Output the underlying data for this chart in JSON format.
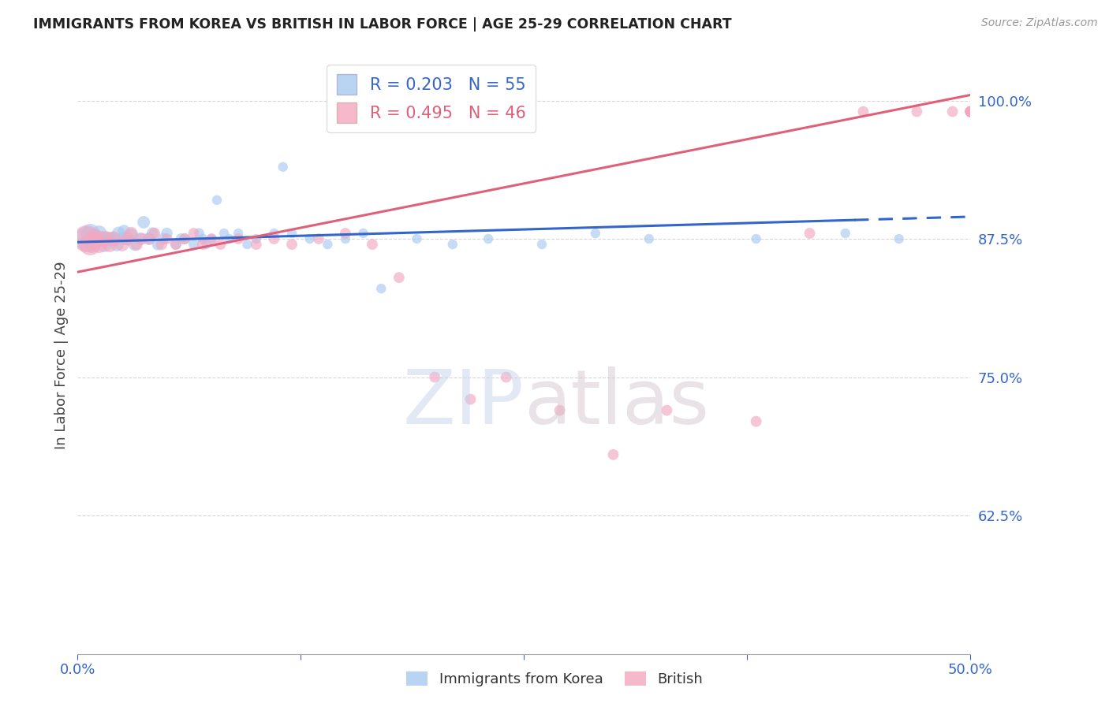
{
  "title": "IMMIGRANTS FROM KOREA VS BRITISH IN LABOR FORCE | AGE 25-29 CORRELATION CHART",
  "source": "Source: ZipAtlas.com",
  "ylabel": "In Labor Force | Age 25-29",
  "korea_R": 0.203,
  "korea_N": 55,
  "british_R": 0.495,
  "british_N": 46,
  "korea_color": "#A8C8F0",
  "british_color": "#F4A8C0",
  "korea_line_color": "#3366CC",
  "british_line_color": "#E0607A",
  "title_color": "#222222",
  "tick_color": "#3366CC",
  "grid_color": "#CCCCCC",
  "background_color": "#FFFFFF",
  "xlim": [
    0.0,
    0.5
  ],
  "ylim": [
    0.5,
    1.04
  ],
  "yticks": [
    0.625,
    0.75,
    0.875,
    1.0
  ],
  "ytick_labels": [
    "62.5%",
    "75.0%",
    "87.5%",
    "100.0%"
  ],
  "xticks": [
    0.0,
    0.125,
    0.25,
    0.375,
    0.5
  ],
  "xtick_labels": [
    "0.0%",
    "",
    "",
    "",
    "50.0%"
  ],
  "korea_x": [
    0.005,
    0.007,
    0.008,
    0.01,
    0.012,
    0.013,
    0.015,
    0.016,
    0.018,
    0.02,
    0.022,
    0.023,
    0.025,
    0.026,
    0.028,
    0.03,
    0.032,
    0.035,
    0.037,
    0.04,
    0.042,
    0.045,
    0.048,
    0.05,
    0.055,
    0.058,
    0.06,
    0.065,
    0.068,
    0.07,
    0.072,
    0.075,
    0.078,
    0.082,
    0.085,
    0.09,
    0.095,
    0.1,
    0.11,
    0.115,
    0.12,
    0.13,
    0.14,
    0.15,
    0.16,
    0.17,
    0.19,
    0.21,
    0.23,
    0.26,
    0.29,
    0.32,
    0.38,
    0.43,
    0.46
  ],
  "korea_y": [
    0.875,
    0.88,
    0.87,
    0.875,
    0.88,
    0.875,
    0.87,
    0.875,
    0.875,
    0.875,
    0.87,
    0.88,
    0.875,
    0.882,
    0.875,
    0.878,
    0.87,
    0.875,
    0.89,
    0.875,
    0.88,
    0.87,
    0.875,
    0.88,
    0.87,
    0.875,
    0.875,
    0.87,
    0.88,
    0.875,
    0.87,
    0.875,
    0.91,
    0.88,
    0.875,
    0.88,
    0.87,
    0.875,
    0.88,
    0.94,
    0.88,
    0.875,
    0.87,
    0.875,
    0.88,
    0.83,
    0.875,
    0.87,
    0.875,
    0.87,
    0.88,
    0.875,
    0.875,
    0.88,
    0.875
  ],
  "korea_size": [
    500,
    300,
    250,
    200,
    200,
    180,
    200,
    180,
    160,
    180,
    160,
    150,
    140,
    130,
    140,
    160,
    140,
    130,
    130,
    130,
    120,
    120,
    110,
    110,
    100,
    100,
    100,
    90,
    90,
    90,
    80,
    80,
    80,
    80,
    80,
    80,
    80,
    80,
    80,
    80,
    80,
    80,
    80,
    80,
    80,
    80,
    80,
    80,
    80,
    80,
    80,
    80,
    80,
    80,
    80
  ],
  "british_x": [
    0.005,
    0.007,
    0.01,
    0.012,
    0.015,
    0.018,
    0.02,
    0.025,
    0.028,
    0.03,
    0.033,
    0.036,
    0.04,
    0.043,
    0.047,
    0.05,
    0.055,
    0.06,
    0.065,
    0.07,
    0.075,
    0.08,
    0.09,
    0.1,
    0.11,
    0.12,
    0.135,
    0.15,
    0.165,
    0.18,
    0.2,
    0.22,
    0.24,
    0.27,
    0.3,
    0.33,
    0.38,
    0.41,
    0.44,
    0.47,
    0.49,
    0.5,
    0.505,
    0.51,
    0.515,
    0.52
  ],
  "british_y": [
    0.875,
    0.87,
    0.875,
    0.87,
    0.875,
    0.87,
    0.875,
    0.87,
    0.875,
    0.88,
    0.87,
    0.875,
    0.875,
    0.88,
    0.87,
    0.875,
    0.87,
    0.875,
    0.88,
    0.87,
    0.875,
    0.87,
    0.875,
    0.87,
    0.875,
    0.87,
    0.875,
    0.88,
    0.87,
    0.84,
    0.75,
    0.73,
    0.75,
    0.72,
    0.68,
    0.72,
    0.71,
    0.88,
    0.99,
    0.99,
    0.99,
    0.99,
    0.99,
    0.99,
    0.99,
    0.99
  ],
  "british_size": [
    600,
    400,
    300,
    250,
    220,
    200,
    180,
    160,
    150,
    140,
    130,
    120,
    110,
    110,
    110,
    100,
    100,
    100,
    100,
    100,
    100,
    100,
    100,
    100,
    100,
    100,
    100,
    100,
    100,
    100,
    100,
    100,
    100,
    100,
    100,
    100,
    100,
    100,
    100,
    100,
    100,
    100,
    100,
    100,
    100,
    100
  ],
  "korea_trend_x0": 0.0,
  "korea_trend_x1": 0.5,
  "korea_trend_y0": 0.872,
  "korea_trend_y1": 0.895,
  "korea_dash_split": 0.435,
  "british_trend_x0": 0.0,
  "british_trend_x1": 0.5,
  "british_trend_y0": 0.845,
  "british_trend_y1": 1.005
}
